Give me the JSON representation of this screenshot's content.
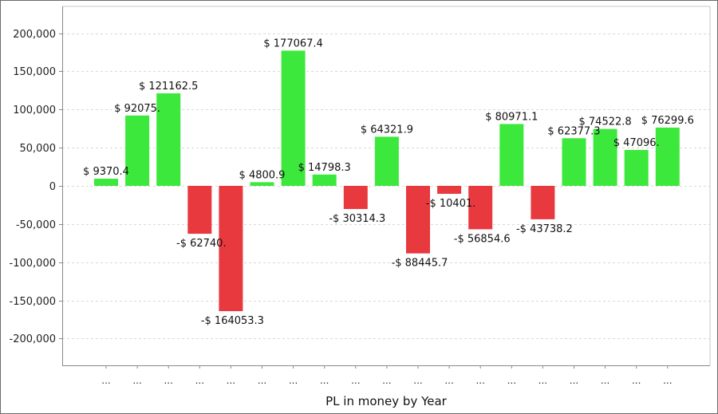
{
  "chart_data": {
    "type": "bar",
    "xlabel": "PL in money by Year",
    "ylabel": "",
    "ylim": [
      -235000,
      235000
    ],
    "yticks": [
      200000,
      150000,
      100000,
      50000,
      0,
      -50000,
      -100000,
      -150000,
      -200000
    ],
    "ytick_labels": [
      "200,000",
      "150,000",
      "100,000",
      "50,000",
      "0",
      "-50,000",
      "-100,000",
      "-150,000",
      "-200,000"
    ],
    "grid": true,
    "categories": [
      "...",
      "...",
      "...",
      "...",
      "...",
      "...",
      "...",
      "...",
      "...",
      "...",
      "...",
      "...",
      "...",
      "...",
      "...",
      "...",
      "...",
      "...",
      "..."
    ],
    "values": [
      9370.4,
      92075.3,
      121162.5,
      -62740.3,
      -164053.3,
      4800.9,
      177067.4,
      14798.3,
      -30314.3,
      64321.9,
      -88445.7,
      -10401.3,
      -56854.6,
      80971.1,
      -43738.2,
      62377.3,
      74522.8,
      47096.3,
      76299.6
    ],
    "labels": [
      "$ 9370.4",
      "$ 92075.",
      "$ 121162.5",
      "-$ 62740.",
      "-$ 164053.3",
      "$ 4800.9",
      "$ 177067.4",
      "$ 14798.3",
      "-$ 30314.3",
      "$ 64321.9",
      "-$ 88445.7",
      "-$ 10401.",
      "-$ 56854.6",
      "$ 80971.1",
      "-$ 43738.2",
      "$ 62377.3",
      "$ 74522.8",
      "$ 47096.",
      "$ 76299.6"
    ],
    "colors": {
      "positive": "#3de83d",
      "negative": "#e8393f"
    }
  }
}
